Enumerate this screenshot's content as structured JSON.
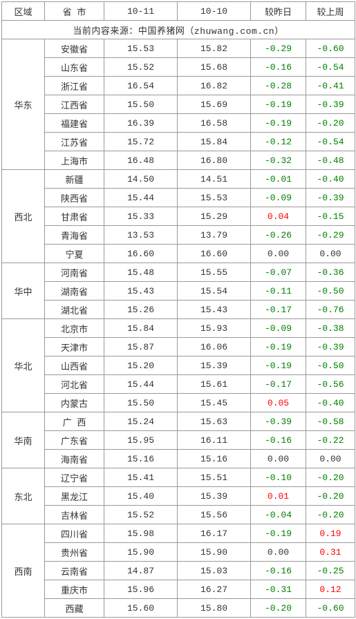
{
  "headers": [
    "区域",
    "省 市",
    "10-11",
    "10-10",
    "较昨日",
    "较上周"
  ],
  "source_label": "当前内容来源：中国养猪网（zhuwang.com.cn）",
  "regions": [
    {
      "name": "华东",
      "rows": [
        {
          "prov": "安徽省",
          "a": "15.53",
          "b": "15.82",
          "d": "-0.29",
          "w": "-0.60"
        },
        {
          "prov": "山东省",
          "a": "15.52",
          "b": "15.68",
          "d": "-0.16",
          "w": "-0.54"
        },
        {
          "prov": "浙江省",
          "a": "16.54",
          "b": "16.82",
          "d": "-0.28",
          "w": "-0.41"
        },
        {
          "prov": "江西省",
          "a": "15.50",
          "b": "15.69",
          "d": "-0.19",
          "w": "-0.39"
        },
        {
          "prov": "福建省",
          "a": "16.39",
          "b": "16.58",
          "d": "-0.19",
          "w": "-0.20"
        },
        {
          "prov": "江苏省",
          "a": "15.72",
          "b": "15.84",
          "d": "-0.12",
          "w": "-0.54"
        },
        {
          "prov": "上海市",
          "a": "16.48",
          "b": "16.80",
          "d": "-0.32",
          "w": "-0.48"
        }
      ]
    },
    {
      "name": "西北",
      "rows": [
        {
          "prov": "新疆",
          "a": "14.50",
          "b": "14.51",
          "d": "-0.01",
          "w": "-0.40"
        },
        {
          "prov": "陕西省",
          "a": "15.44",
          "b": "15.53",
          "d": "-0.09",
          "w": "-0.39"
        },
        {
          "prov": "甘肃省",
          "a": "15.33",
          "b": "15.29",
          "d": "0.04",
          "w": "-0.15"
        },
        {
          "prov": "青海省",
          "a": "13.53",
          "b": "13.79",
          "d": "-0.26",
          "w": "-0.29"
        },
        {
          "prov": "宁夏",
          "a": "16.60",
          "b": "16.60",
          "d": "0.00",
          "w": "0.00"
        }
      ]
    },
    {
      "name": "华中",
      "rows": [
        {
          "prov": "河南省",
          "a": "15.48",
          "b": "15.55",
          "d": "-0.07",
          "w": "-0.36"
        },
        {
          "prov": "湖南省",
          "a": "15.43",
          "b": "15.54",
          "d": "-0.11",
          "w": "-0.50"
        },
        {
          "prov": "湖北省",
          "a": "15.26",
          "b": "15.43",
          "d": "-0.17",
          "w": "-0.76"
        }
      ]
    },
    {
      "name": "华北",
      "rows": [
        {
          "prov": "北京市",
          "a": "15.84",
          "b": "15.93",
          "d": "-0.09",
          "w": "-0.38"
        },
        {
          "prov": "天津市",
          "a": "15.87",
          "b": "16.06",
          "d": "-0.19",
          "w": "-0.39"
        },
        {
          "prov": "山西省",
          "a": "15.20",
          "b": "15.39",
          "d": "-0.19",
          "w": "-0.50"
        },
        {
          "prov": "河北省",
          "a": "15.44",
          "b": "15.61",
          "d": "-0.17",
          "w": "-0.56"
        },
        {
          "prov": "内蒙古",
          "a": "15.50",
          "b": "15.45",
          "d": "0.05",
          "w": "-0.40"
        }
      ]
    },
    {
      "name": "华南",
      "rows": [
        {
          "prov": "广 西",
          "a": "15.24",
          "b": "15.63",
          "d": "-0.39",
          "w": "-0.58"
        },
        {
          "prov": "广东省",
          "a": "15.95",
          "b": "16.11",
          "d": "-0.16",
          "w": "-0.22"
        },
        {
          "prov": "海南省",
          "a": "15.16",
          "b": "15.16",
          "d": "0.00",
          "w": "0.00"
        }
      ]
    },
    {
      "name": "东北",
      "rows": [
        {
          "prov": "辽宁省",
          "a": "15.41",
          "b": "15.51",
          "d": "-0.10",
          "w": "-0.20"
        },
        {
          "prov": "黑龙江",
          "a": "15.40",
          "b": "15.39",
          "d": "0.01",
          "w": "-0.20"
        },
        {
          "prov": "吉林省",
          "a": "15.52",
          "b": "15.56",
          "d": "-0.04",
          "w": "-0.20"
        }
      ]
    },
    {
      "name": "西南",
      "rows": [
        {
          "prov": "四川省",
          "a": "15.98",
          "b": "16.17",
          "d": "-0.19",
          "w": "0.19"
        },
        {
          "prov": "贵州省",
          "a": "15.90",
          "b": "15.90",
          "d": "0.00",
          "w": "0.31"
        },
        {
          "prov": "云南省",
          "a": "14.87",
          "b": "15.03",
          "d": "-0.16",
          "w": "-0.25"
        },
        {
          "prov": "重庆市",
          "a": "15.96",
          "b": "16.27",
          "d": "-0.31",
          "w": "0.12"
        },
        {
          "prov": "西藏",
          "a": "15.60",
          "b": "15.80",
          "d": "-0.20",
          "w": "-0.60"
        }
      ]
    }
  ]
}
